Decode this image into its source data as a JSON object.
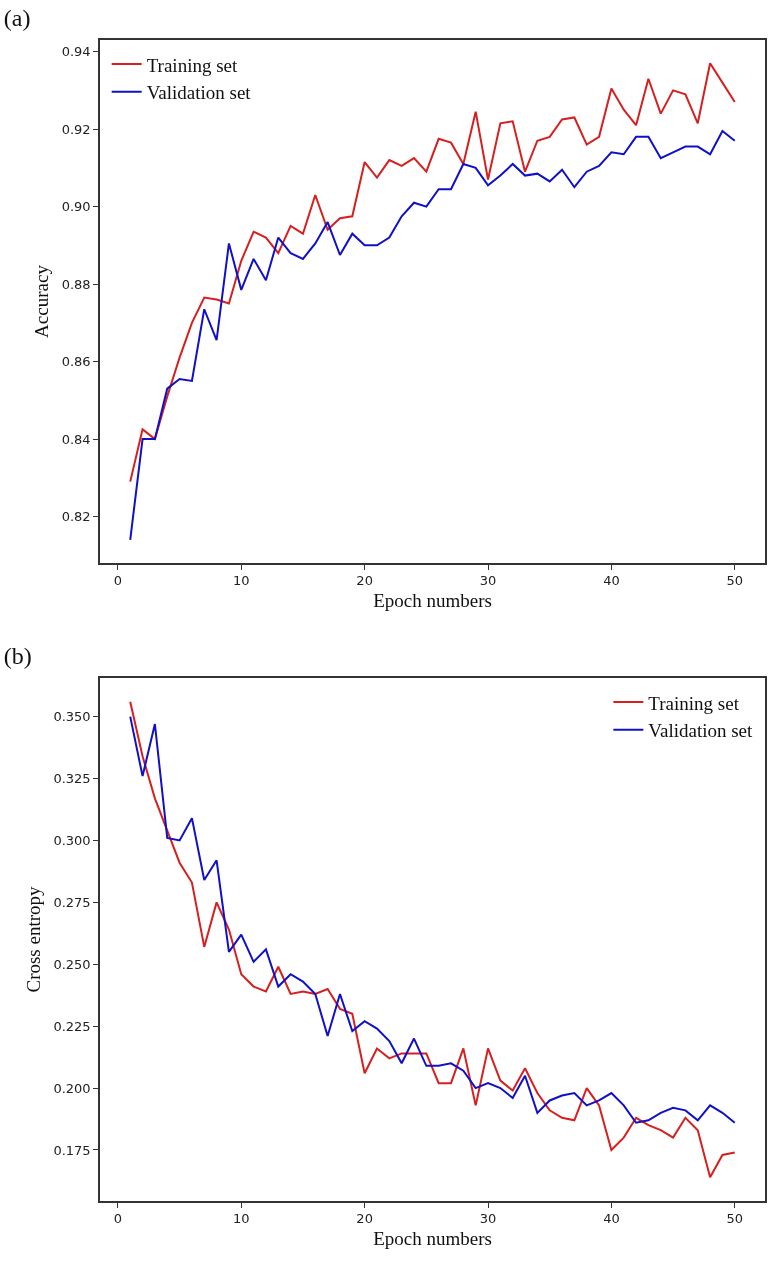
{
  "chart_data": [
    {
      "type": "line",
      "title": "(a)",
      "xlabel": "Epoch numbers",
      "ylabel": "Accuracy",
      "x": [
        1,
        2,
        3,
        4,
        5,
        6,
        7,
        8,
        9,
        10,
        11,
        12,
        13,
        14,
        15,
        16,
        17,
        18,
        19,
        20,
        21,
        22,
        23,
        24,
        25,
        26,
        27,
        28,
        29,
        30,
        31,
        32,
        33,
        34,
        35,
        36,
        37,
        38,
        39,
        40,
        41,
        42,
        43,
        44,
        45,
        46,
        47,
        48,
        49,
        50
      ],
      "series": [
        {
          "name": "Training set",
          "color": "#d62020",
          "values": [
            0.829,
            0.8425,
            0.84,
            0.851,
            0.861,
            0.87,
            0.8765,
            0.876,
            0.875,
            0.886,
            0.8935,
            0.892,
            0.888,
            0.895,
            0.893,
            0.903,
            0.894,
            0.897,
            0.8975,
            0.9115,
            0.9075,
            0.912,
            0.9105,
            0.9125,
            0.909,
            0.9175,
            0.9165,
            0.911,
            0.9245,
            0.907,
            0.9215,
            0.922,
            0.909,
            0.917,
            0.918,
            0.9225,
            0.923,
            0.916,
            0.918,
            0.9305,
            0.925,
            0.921,
            0.933,
            0.924,
            0.93,
            0.929,
            0.9215,
            0.937,
            0.932,
            0.927
          ]
        },
        {
          "name": "Validation set",
          "color": "#1010c8",
          "values": [
            0.814,
            0.84,
            0.84,
            0.853,
            0.8555,
            0.855,
            0.8735,
            0.8655,
            0.8905,
            0.8785,
            0.8865,
            0.881,
            0.892,
            0.888,
            0.8865,
            0.8905,
            0.896,
            0.8875,
            0.893,
            0.89,
            0.89,
            0.892,
            0.8975,
            0.901,
            0.9,
            0.9045,
            0.9045,
            0.911,
            0.91,
            0.9055,
            0.908,
            0.911,
            0.908,
            0.9085,
            0.9065,
            0.9095,
            0.905,
            0.909,
            0.9105,
            0.914,
            0.9135,
            0.918,
            0.918,
            0.9125,
            0.914,
            0.9155,
            0.9155,
            0.9135,
            0.9195,
            0.917
          ]
        }
      ],
      "xlim": [
        -1.45,
        52.45
      ],
      "xticks": [
        0,
        10,
        20,
        30,
        40,
        50
      ],
      "ylim": [
        0.808,
        0.943
      ],
      "yticks": [
        {
          "value": 0.82,
          "label": "0.82"
        },
        {
          "value": 0.84,
          "label": "0.84"
        },
        {
          "value": 0.86,
          "label": "0.86"
        },
        {
          "value": 0.88,
          "label": "0.88"
        },
        {
          "value": 0.9,
          "label": "0.90"
        },
        {
          "value": 0.92,
          "label": "0.92"
        },
        {
          "value": 0.94,
          "label": "0.94"
        }
      ],
      "grid": false,
      "legend": "top left",
      "marker": "none",
      "line_style": "solid"
    },
    {
      "type": "line",
      "title": "(b)",
      "xlabel": "Epoch numbers",
      "ylabel": "Cross entropy",
      "x": [
        1,
        2,
        3,
        4,
        5,
        6,
        7,
        8,
        9,
        10,
        11,
        12,
        13,
        14,
        15,
        16,
        17,
        18,
        19,
        20,
        21,
        22,
        23,
        24,
        25,
        26,
        27,
        28,
        29,
        30,
        31,
        32,
        33,
        34,
        35,
        36,
        37,
        38,
        39,
        40,
        41,
        42,
        43,
        44,
        45,
        46,
        47,
        48,
        49,
        50
      ],
      "series": [
        {
          "name": "Training set",
          "color": "#d62020",
          "values": [
            0.356,
            0.334,
            0.317,
            0.304,
            0.291,
            0.283,
            0.257,
            0.275,
            0.264,
            0.246,
            0.241,
            0.239,
            0.249,
            0.238,
            0.239,
            0.238,
            0.24,
            0.232,
            0.23,
            0.206,
            0.216,
            0.212,
            0.214,
            0.214,
            0.214,
            0.202,
            0.202,
            0.216,
            0.193,
            0.216,
            0.203,
            0.199,
            0.208,
            0.198,
            0.191,
            0.188,
            0.187,
            0.2,
            0.193,
            0.175,
            0.18,
            0.188,
            0.185,
            0.183,
            0.18,
            0.188,
            0.183,
            0.164,
            0.173,
            0.174
          ]
        },
        {
          "name": "Validation set",
          "color": "#1010c8",
          "values": [
            0.35,
            0.326,
            0.347,
            0.301,
            0.3,
            0.309,
            0.284,
            0.292,
            0.255,
            0.262,
            0.251,
            0.256,
            0.241,
            0.246,
            0.243,
            0.238,
            0.221,
            0.238,
            0.223,
            0.227,
            0.224,
            0.219,
            0.21,
            0.22,
            0.209,
            0.209,
            0.21,
            0.207,
            0.2,
            0.202,
            0.2,
            0.196,
            0.205,
            0.19,
            0.195,
            0.197,
            0.198,
            0.193,
            0.195,
            0.198,
            0.193,
            0.186,
            0.187,
            0.19,
            0.192,
            0.191,
            0.187,
            0.193,
            0.19,
            0.186
          ]
        }
      ],
      "xlim": [
        -1.45,
        52.45
      ],
      "xticks": [
        0,
        10,
        20,
        30,
        40,
        50
      ],
      "ylim": [
        0.1544,
        0.3656
      ],
      "yticks": [
        {
          "value": 0.175,
          "label": "0.175"
        },
        {
          "value": 0.2,
          "label": "0.200"
        },
        {
          "value": 0.225,
          "label": "0.225"
        },
        {
          "value": 0.25,
          "label": "0.250"
        },
        {
          "value": 0.275,
          "label": "0.275"
        },
        {
          "value": 0.3,
          "label": "0.300"
        },
        {
          "value": 0.325,
          "label": "0.325"
        },
        {
          "value": 0.35,
          "label": "0.350"
        }
      ],
      "grid": false,
      "legend": "top right",
      "marker": "none",
      "line_style": "solid"
    }
  ]
}
